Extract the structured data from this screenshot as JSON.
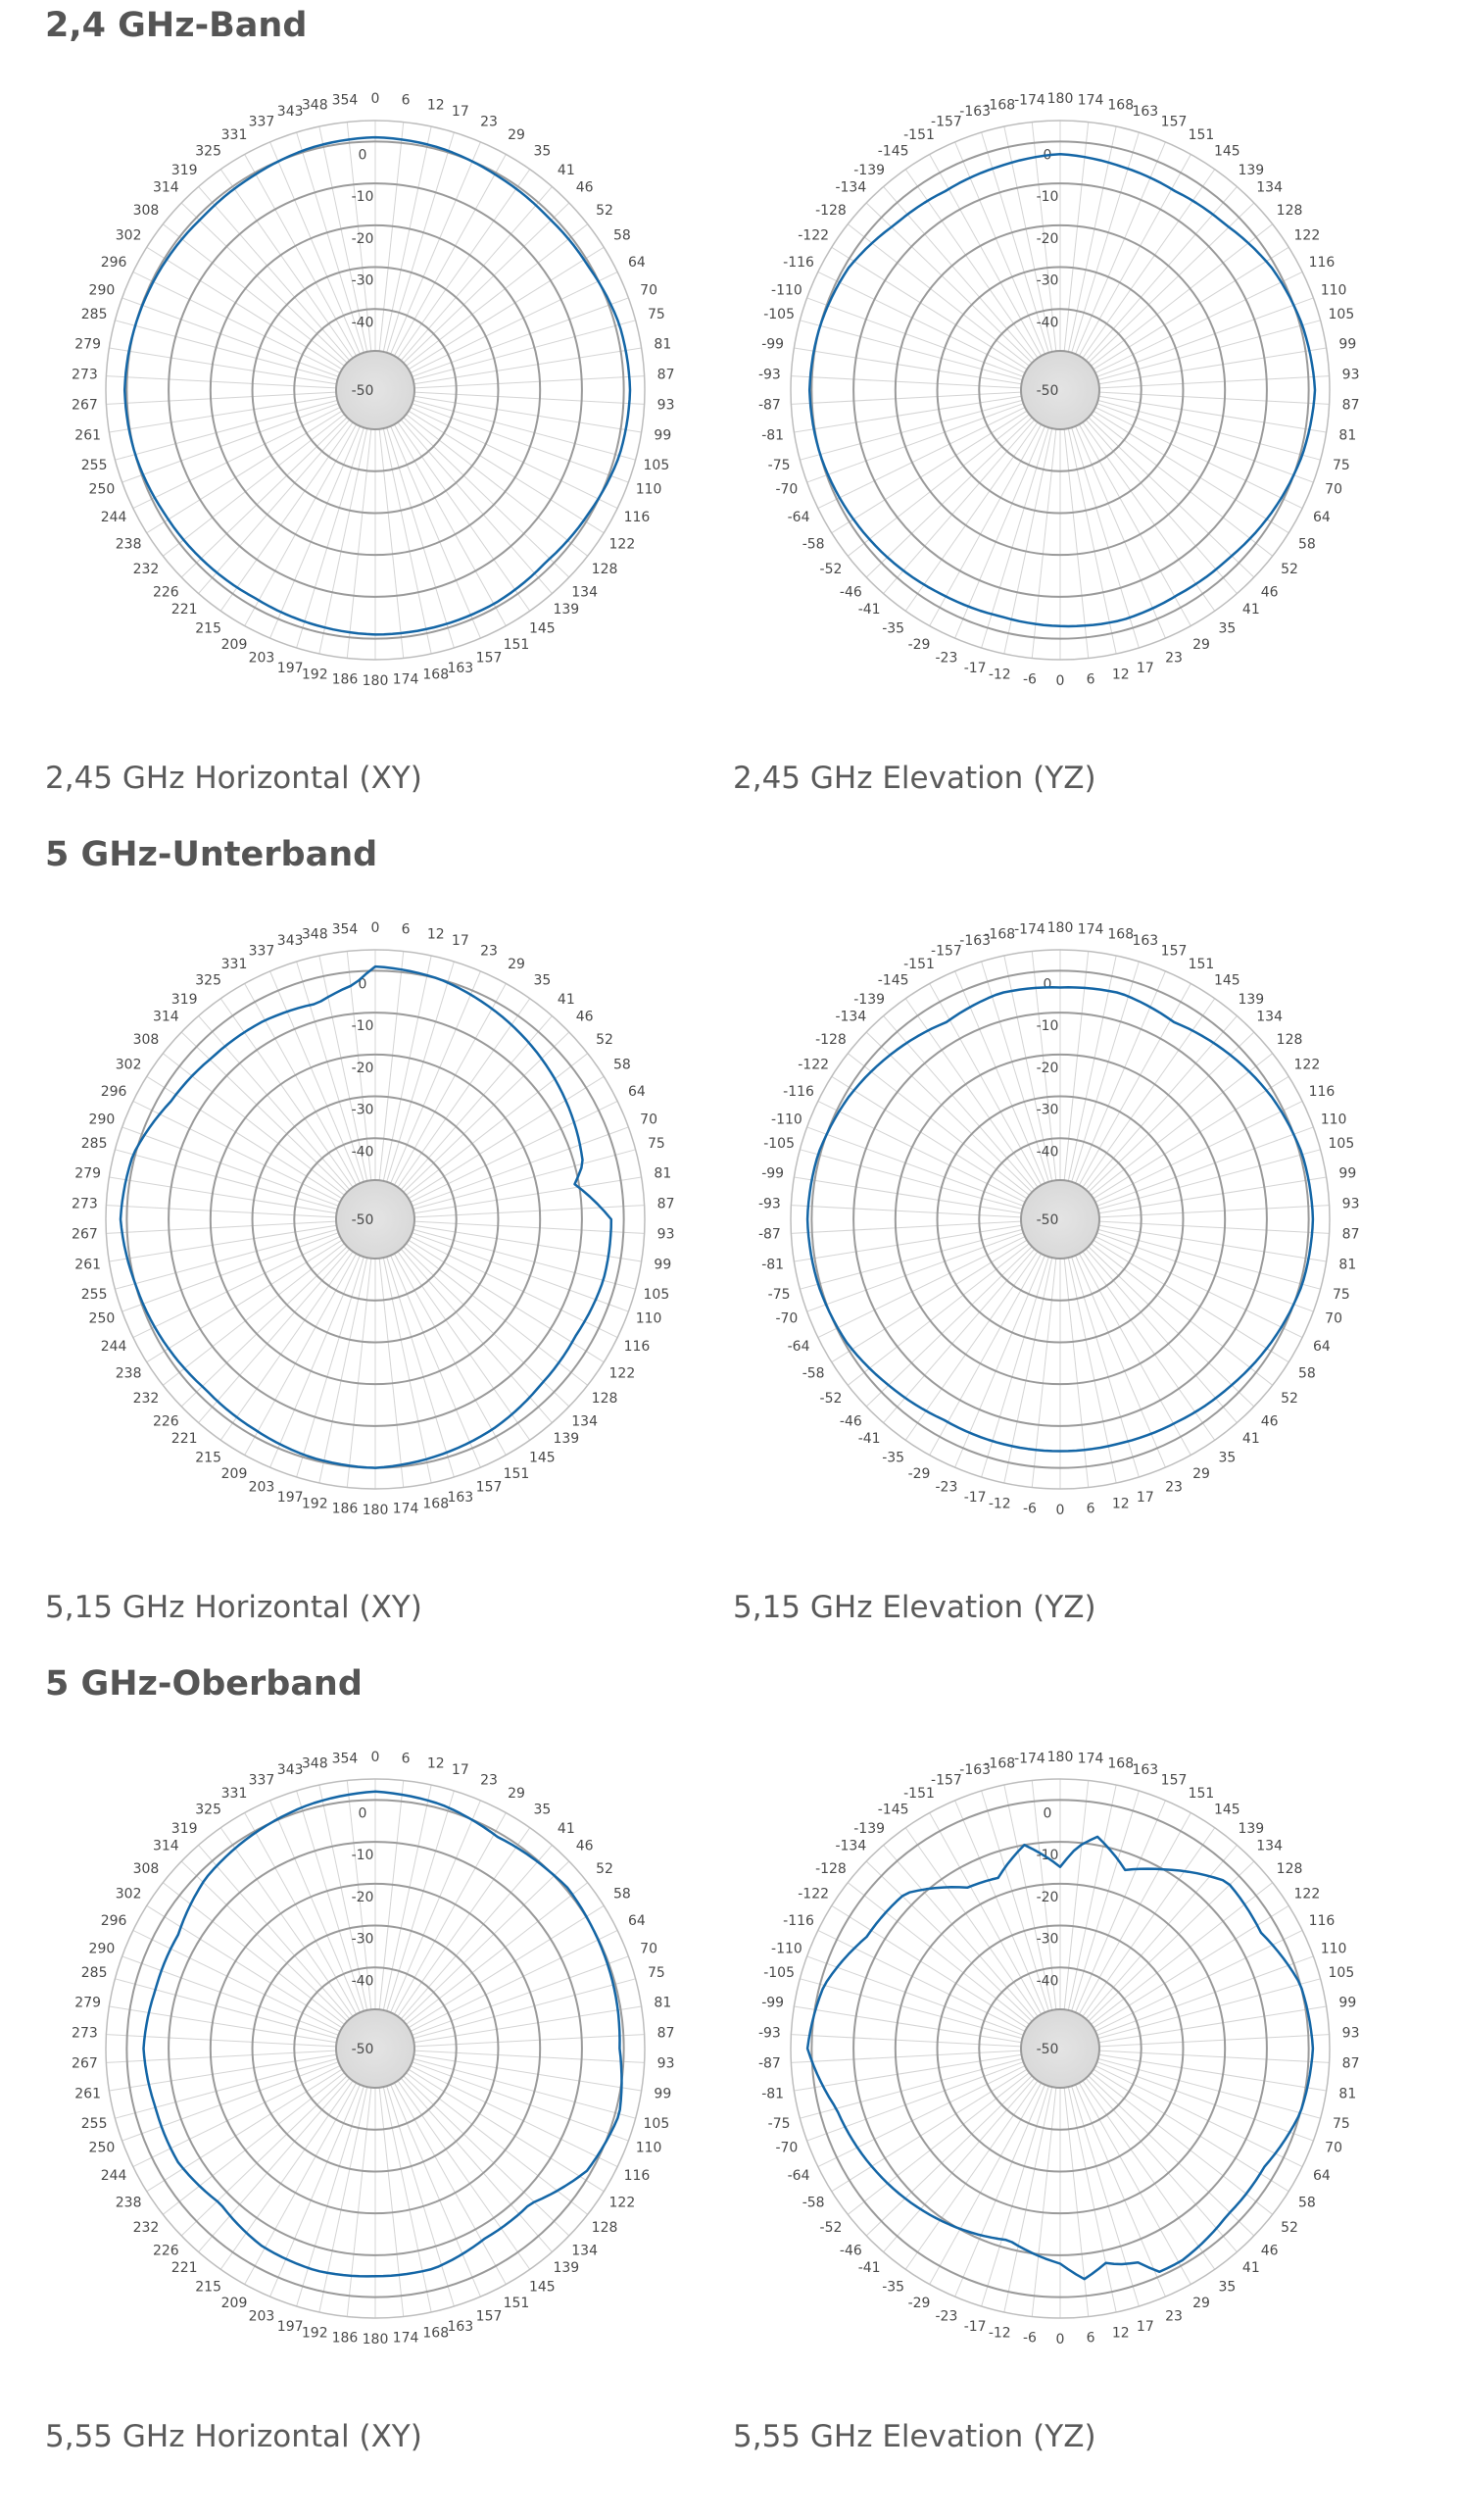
{
  "sections": [
    {
      "title": "2,4 GHz-Band"
    },
    {
      "title": "5 GHz-Unterband"
    },
    {
      "title": "5 GHz-Oberband"
    }
  ],
  "colors": {
    "pattern": "#1466a6",
    "grid": "#9a9a9a",
    "spoke": "#d4d4d4",
    "text": "#4a4a4a",
    "center": "#d9d9d9"
  },
  "chart_data": [
    {
      "type": "polar",
      "caption": "2,45 GHz Horizontal (XY)",
      "angle_labels": "horizontal",
      "rings": [
        0,
        -10,
        -20,
        -30,
        -40,
        -50
      ],
      "rlim": [
        -50,
        5
      ],
      "angles": [
        0,
        15,
        30,
        45,
        60,
        75,
        90,
        105,
        120,
        135,
        150,
        165,
        180,
        195,
        210,
        225,
        240,
        255,
        270,
        285,
        300,
        315,
        330,
        345
      ],
      "gain": [
        1,
        0.5,
        -0.5,
        -1,
        -0.5,
        1,
        1.5,
        1,
        -0.5,
        -1.5,
        -1,
        -1,
        -1,
        -1.5,
        -2,
        -1.5,
        -1,
        0,
        0.5,
        0,
        -0.5,
        -1,
        -0.5,
        0.5
      ]
    },
    {
      "type": "polar",
      "caption": "2,45 GHz Elevation (YZ)",
      "angle_labels": "elevation",
      "rings": [
        0,
        -10,
        -20,
        -30,
        -40,
        -50
      ],
      "rlim": [
        -50,
        5
      ],
      "angles": [
        0,
        15,
        30,
        45,
        60,
        75,
        90,
        105,
        120,
        135,
        150,
        165,
        180,
        195,
        210,
        225,
        240,
        255,
        270,
        285,
        300,
        315,
        330,
        345
      ],
      "gain": [
        -3,
        -2.5,
        -3,
        -2.5,
        -1,
        0.5,
        1.5,
        0.5,
        -1,
        -3.5,
        -4.5,
        -4,
        -3,
        -4,
        -4.5,
        -3.5,
        -1,
        0,
        0.5,
        0,
        -1,
        -2,
        -3,
        -3.5
      ]
    },
    {
      "type": "polar",
      "caption": "5,15 GHz Horizontal (XY)",
      "angle_labels": "horizontal",
      "rings": [
        0,
        -10,
        -20,
        -30,
        -40,
        -50
      ],
      "rlim": [
        -50,
        5
      ],
      "angles": [
        0,
        15,
        30,
        45,
        60,
        75,
        80,
        85,
        90,
        105,
        120,
        135,
        150,
        165,
        180,
        195,
        210,
        225,
        240,
        255,
        270,
        285,
        300,
        315,
        330,
        345,
        355
      ],
      "gain": [
        1,
        0,
        -2,
        -4,
        -6,
        -8,
        -11,
        -7,
        -3,
        -3,
        -4,
        -3.5,
        -2,
        -1,
        0,
        -0.5,
        -1.5,
        -2,
        -1,
        0,
        1.5,
        0.5,
        -3,
        -4.5,
        -5,
        -6,
        -3
      ]
    },
    {
      "type": "polar",
      "caption": "5,15 GHz Elevation (YZ)",
      "angle_labels": "elevation",
      "rings": [
        0,
        -10,
        -20,
        -30,
        -40,
        -50
      ],
      "rlim": [
        -50,
        5
      ],
      "angles": [
        0,
        15,
        30,
        45,
        60,
        75,
        90,
        105,
        120,
        135,
        150,
        165,
        180,
        195,
        210,
        225,
        240,
        255,
        270,
        285,
        300,
        315,
        330,
        345
      ],
      "gain": [
        -4,
        -4,
        -3.5,
        -2.5,
        -1,
        0.5,
        1,
        0.5,
        -1,
        -3,
        -5,
        -3.5,
        -4,
        -3.5,
        -5,
        -3,
        -1,
        0.5,
        1,
        0.5,
        -0.5,
        -2.5,
        -4,
        -4
      ]
    },
    {
      "type": "polar",
      "caption": "5,55 GHz Horizontal (XY)",
      "angle_labels": "horizontal",
      "rings": [
        0,
        -10,
        -20,
        -30,
        -40,
        -50
      ],
      "rlim": [
        -50,
        5
      ],
      "angles": [
        0,
        15,
        30,
        45,
        50,
        60,
        75,
        90,
        105,
        120,
        135,
        150,
        165,
        180,
        195,
        210,
        225,
        240,
        255,
        270,
        285,
        300,
        315,
        330,
        345
      ],
      "gain": [
        2,
        1,
        -1,
        0,
        0.5,
        0,
        -0.5,
        -1,
        1,
        -1,
        -7,
        -7,
        -5,
        -5,
        -4.5,
        -5,
        -7,
        -5,
        -5,
        -4,
        -5,
        -5,
        -2,
        -0.5,
        1
      ]
    },
    {
      "type": "polar",
      "caption": "5,55 GHz Elevation (YZ)",
      "angle_labels": "elevation",
      "rings": [
        0,
        -10,
        -20,
        -30,
        -40,
        -50
      ],
      "rlim": [
        -50,
        5
      ],
      "angles": [
        0,
        6,
        12,
        15,
        20,
        24,
        30,
        45,
        60,
        75,
        90,
        105,
        120,
        135,
        150,
        160,
        165,
        170,
        175,
        180,
        190,
        200,
        210,
        225,
        240,
        255,
        270,
        285,
        300,
        315,
        330,
        345
      ],
      "gain": [
        -8,
        -4,
        -7,
        -6,
        -5,
        -1,
        -1,
        -3,
        -3,
        0,
        1,
        0,
        -4,
        -3,
        -10,
        -14,
        -11,
        -8,
        -11,
        -16,
        -10,
        -16,
        -15,
        -7,
        -6,
        -1,
        1,
        -4,
        -6,
        -8,
        -10,
        -12
      ]
    }
  ]
}
